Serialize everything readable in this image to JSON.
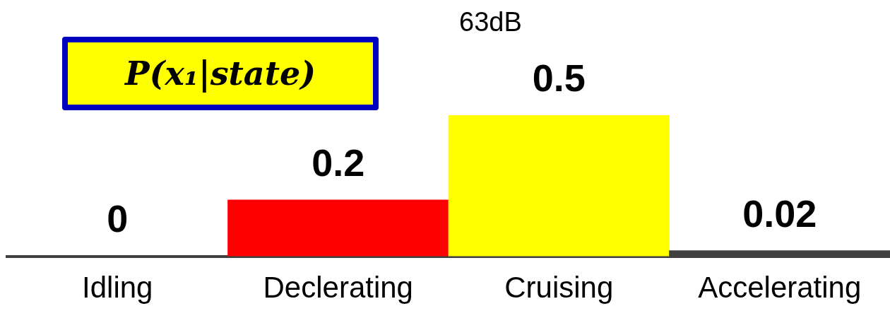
{
  "chart_data": {
    "type": "bar",
    "title": "P(x₁|state)",
    "categories": [
      "Idling",
      "Declerating",
      "Cruising",
      "Accelerating"
    ],
    "values": [
      0,
      0.2,
      0.5,
      0.02
    ],
    "colors": [
      "#404040",
      "#ff0000",
      "#ffff00",
      "#404040"
    ],
    "data_labels": true,
    "grid": false,
    "legend": false,
    "annotations": [
      "63dB"
    ]
  }
}
